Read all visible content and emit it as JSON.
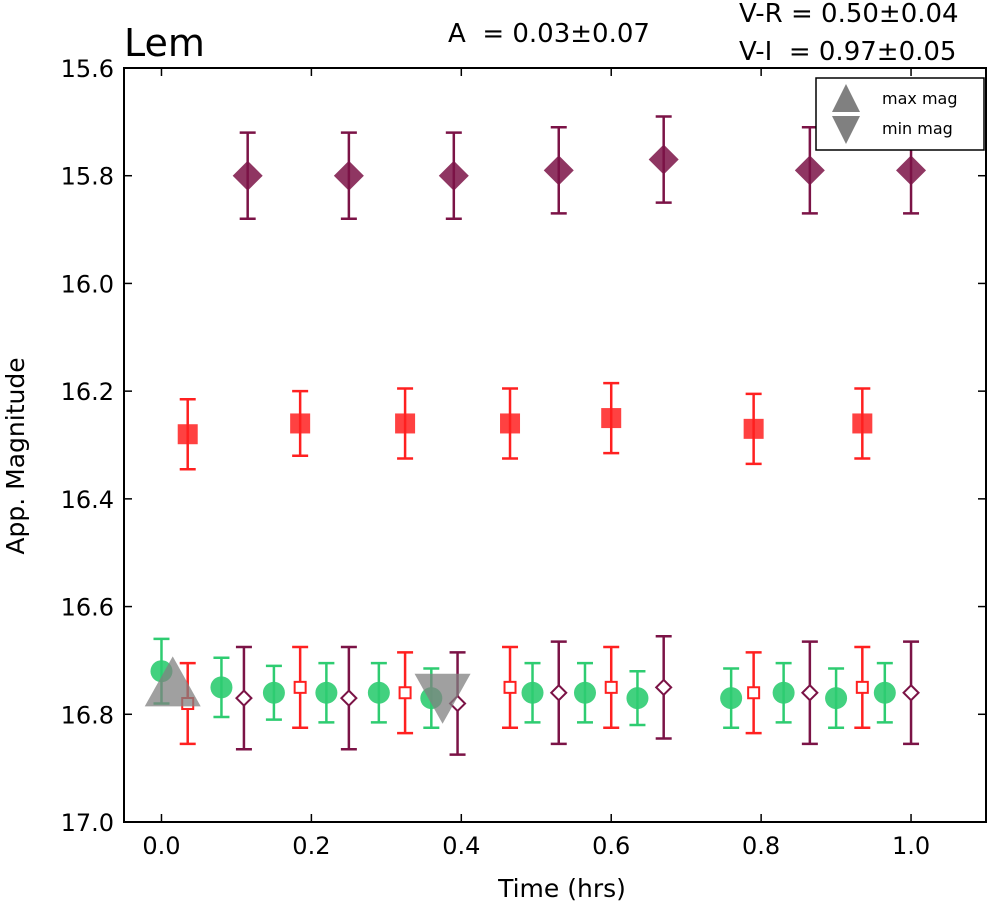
{
  "chart_data": {
    "type": "scatter",
    "title": "Lem",
    "xlabel": "Time (hrs)",
    "ylabel": "App. Magnitude",
    "xlim": [
      -0.05,
      1.1
    ],
    "ylim": [
      17.0,
      15.6
    ],
    "y_inverted": true,
    "grid": false,
    "xticks": [
      0.0,
      0.2,
      0.4,
      0.6,
      0.8,
      1.0
    ],
    "xtick_labels": [
      "0.0",
      "0.2",
      "0.4",
      "0.6",
      "0.8",
      "1.0"
    ],
    "yticks": [
      15.6,
      15.8,
      16.0,
      16.2,
      16.4,
      16.6,
      16.8,
      17.0
    ],
    "ytick_labels": [
      "15.6",
      "15.8",
      "16.0",
      "16.2",
      "16.4",
      "16.6",
      "16.8",
      "17.0"
    ],
    "annotations": [
      {
        "text": "A  = 0.03±0.07",
        "position": "top-center"
      },
      {
        "text": "V-R = 0.50±0.04",
        "position": "top-right"
      },
      {
        "text": "V-I  = 0.97±0.05",
        "position": "top-right"
      }
    ],
    "legend": {
      "placement": "top-right",
      "entries": [
        {
          "label": "max mag",
          "marker": "triangle-up"
        },
        {
          "label": "min mag",
          "marker": "triangle-down"
        }
      ]
    },
    "colors": {
      "V": "#2ecc71",
      "R": "#ff2020",
      "I": "#7b1346",
      "extrema": "#808080"
    },
    "series": [
      {
        "band": "V",
        "marker": "circle",
        "filled": true,
        "x": [
          0.0,
          0.08,
          0.15,
          0.22,
          0.29,
          0.36,
          0.495,
          0.565,
          0.635,
          0.76,
          0.83,
          0.9,
          0.965
        ],
        "y": [
          16.72,
          16.75,
          16.76,
          16.76,
          16.76,
          16.77,
          16.76,
          16.76,
          16.77,
          16.77,
          16.76,
          16.77,
          16.76
        ],
        "err": [
          0.06,
          0.055,
          0.05,
          0.055,
          0.055,
          0.055,
          0.055,
          0.055,
          0.05,
          0.055,
          0.055,
          0.055,
          0.055
        ]
      },
      {
        "band": "R",
        "marker": "square",
        "filled": true,
        "x": [
          0.035,
          0.185,
          0.325,
          0.465,
          0.6,
          0.79,
          0.935
        ],
        "y": [
          16.28,
          16.26,
          16.26,
          16.26,
          16.25,
          16.27,
          16.26
        ],
        "err": [
          0.065,
          0.06,
          0.065,
          0.065,
          0.065,
          0.065,
          0.065
        ]
      },
      {
        "band": "I",
        "marker": "diamond",
        "filled": true,
        "x": [
          0.115,
          0.25,
          0.39,
          0.53,
          0.67,
          0.865,
          1.0
        ],
        "y": [
          15.8,
          15.8,
          15.8,
          15.79,
          15.77,
          15.79,
          15.79
        ],
        "err": [
          0.08,
          0.08,
          0.08,
          0.08,
          0.08,
          0.08,
          0.08
        ]
      },
      {
        "band": "R",
        "marker": "square",
        "filled": false,
        "x": [
          0.035,
          0.185,
          0.325,
          0.465,
          0.6,
          0.79,
          0.935
        ],
        "y": [
          16.78,
          16.75,
          16.76,
          16.75,
          16.75,
          16.76,
          16.75
        ],
        "err": [
          0.075,
          0.075,
          0.075,
          0.075,
          0.075,
          0.075,
          0.075
        ]
      },
      {
        "band": "I",
        "marker": "diamond",
        "filled": false,
        "x": [
          0.11,
          0.25,
          0.395,
          0.53,
          0.67,
          0.865,
          1.0
        ],
        "y": [
          16.77,
          16.77,
          16.78,
          16.76,
          16.75,
          16.76,
          16.76
        ],
        "err": [
          0.095,
          0.095,
          0.095,
          0.095,
          0.095,
          0.095,
          0.095
        ]
      }
    ],
    "extrema": [
      {
        "label": "max mag",
        "marker": "triangle-up",
        "x": 0.015,
        "y": 16.75
      },
      {
        "label": "min mag",
        "marker": "triangle-down",
        "x": 0.375,
        "y": 16.76
      }
    ]
  }
}
